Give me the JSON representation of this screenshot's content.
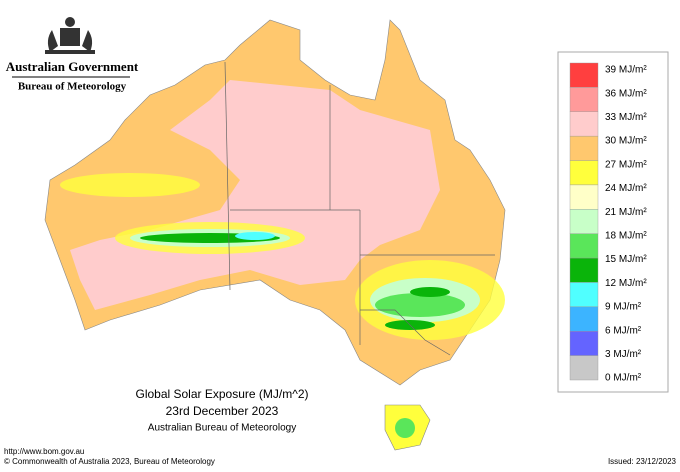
{
  "header": {
    "title": "Australian Government",
    "subtitle": "Bureau of Meteorology"
  },
  "map": {
    "title": "Global Solar Exposure (MJ/m^2)",
    "date": "23rd December 2023",
    "source": "Australian Bureau of Meteorology"
  },
  "legend": {
    "labels": [
      "39 MJ/m²",
      "36 MJ/m²",
      "33 MJ/m²",
      "30 MJ/m²",
      "27 MJ/m²",
      "24 MJ/m²",
      "21 MJ/m²",
      "18 MJ/m²",
      "15 MJ/m²",
      "12 MJ/m²",
      "9 MJ/m²",
      "6 MJ/m²",
      "3 MJ/m²",
      "0 MJ/m²"
    ],
    "colors": [
      "#ff3f3f",
      "#ff9a9a",
      "#ffcccc",
      "#ffc86e",
      "#ffff3c",
      "#ffffc8",
      "#c8ffc8",
      "#5ae65a",
      "#0ab40a",
      "#50ffff",
      "#3cb4ff",
      "#6464ff",
      "#c8c8c8"
    ]
  },
  "footer": {
    "url": "http://www.bom.gov.au",
    "copyright": "© Commonwealth of Australia 2023, Bureau of Meteorology",
    "issued": "Issued: 23/12/2023"
  }
}
